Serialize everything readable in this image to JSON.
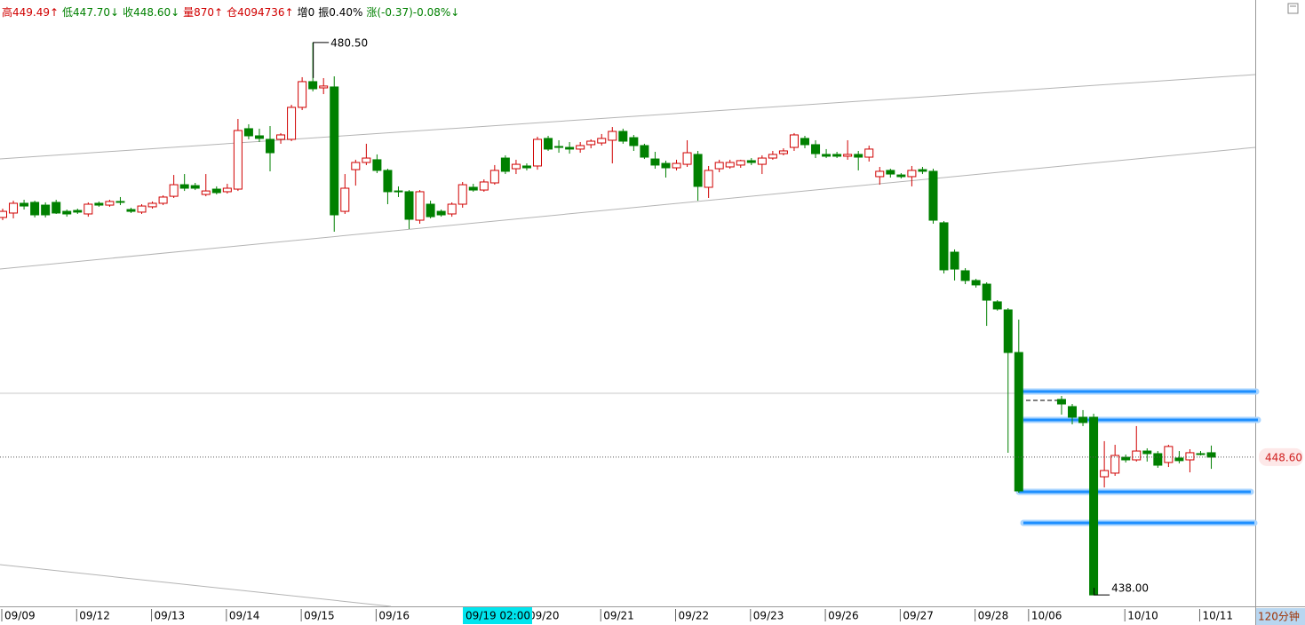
{
  "chart_data": {
    "type": "candlestick",
    "header_items": [
      {
        "text": "高449.49↑",
        "color": "#d00000"
      },
      {
        "text": "低447.70↓",
        "color": "#008000"
      },
      {
        "text": "收448.60↓",
        "color": "#008000"
      },
      {
        "text": "量870↑",
        "color": "#d00000"
      },
      {
        "text": "仓4094736↑",
        "color": "#d00000"
      },
      {
        "text": "增0",
        "color": "#000000"
      },
      {
        "text": "振0.40%",
        "color": "#000000"
      },
      {
        "text": "涨(-0.37)-0.08%↓",
        "color": "#008000"
      }
    ],
    "period_label": "120分钟",
    "cursor_label": "09/19 02:00",
    "up_color": "#d00000",
    "down_color": "#008000",
    "ylim": [
      437.12,
      483.77
    ],
    "categories": [
      "09/09",
      null,
      null,
      null,
      null,
      null,
      null,
      "09/12",
      null,
      null,
      null,
      null,
      null,
      null,
      "09/13",
      null,
      null,
      null,
      null,
      null,
      null,
      "09/14",
      null,
      null,
      null,
      null,
      null,
      null,
      "09/15",
      null,
      null,
      null,
      null,
      null,
      null,
      "09/16",
      null,
      null,
      null,
      null,
      null,
      null,
      null,
      null,
      null,
      null,
      null,
      null,
      null,
      "09/20",
      null,
      null,
      null,
      null,
      null,
      null,
      "09/21",
      null,
      null,
      null,
      null,
      null,
      null,
      "09/22",
      null,
      null,
      null,
      null,
      null,
      null,
      "09/23",
      null,
      null,
      null,
      null,
      null,
      null,
      "09/26",
      null,
      null,
      null,
      null,
      null,
      null,
      "09/27",
      null,
      null,
      null,
      null,
      null,
      null,
      "09/28",
      null,
      null,
      null,
      null,
      "10/06",
      null,
      null,
      null,
      null,
      null,
      null,
      null,
      null,
      "10/10",
      null,
      null,
      null,
      null,
      null,
      null,
      "10/11",
      null
    ],
    "open": [
      467.04,
      467.38,
      468.13,
      468.2,
      467.99,
      468.2,
      467.51,
      467.58,
      467.31,
      468.13,
      467.99,
      468.27,
      467.65,
      467.45,
      467.86,
      468.13,
      468.67,
      469.56,
      469.49,
      468.81,
      469.22,
      469.02,
      469.22,
      473.87,
      473.32,
      473.05,
      473.05,
      473.05,
      475.51,
      477.49,
      477.01,
      477.08,
      467.51,
      470.72,
      471.27,
      471.48,
      470.66,
      469.08,
      469.02,
      466.83,
      468.06,
      467.51,
      467.31,
      468.06,
      469.36,
      469.15,
      469.7,
      471.61,
      470.79,
      471.0,
      471.0,
      473.12,
      472.5,
      472.43,
      472.3,
      472.64,
      472.77,
      472.98,
      473.66,
      473.18,
      472.57,
      471.54,
      471.2,
      470.86,
      471.13,
      471.89,
      469.36,
      470.79,
      470.93,
      471.07,
      471.41,
      471.13,
      471.61,
      471.95,
      472.43,
      473.12,
      472.64,
      471.89,
      471.89,
      471.75,
      471.89,
      471.68,
      470.18,
      470.66,
      470.31,
      470.18,
      470.72,
      470.59,
      466.63,
      464.37,
      462.94,
      462.19,
      461.91,
      460.55,
      459.93,
      456.65,
      null,
      null,
      null,
      453.04,
      452.49,
      451.67,
      451.67,
      447.09,
      447.37,
      448.59,
      448.39,
      449.07,
      448.87,
      448.19,
      448.53,
      448.39,
      448.87,
      448.94
    ],
    "high": [
      467.72,
      468.33,
      468.4,
      468.33,
      468.2,
      468.4,
      467.65,
      467.72,
      468.2,
      468.27,
      468.4,
      468.61,
      467.79,
      468.06,
      468.27,
      468.74,
      470.31,
      470.38,
      469.7,
      470.38,
      469.43,
      469.63,
      474.62,
      474.21,
      473.87,
      474.07,
      473.53,
      475.71,
      477.83,
      480.5,
      477.76,
      477.9,
      470.38,
      471.48,
      472.71,
      471.89,
      470.79,
      469.43,
      469.15,
      469.15,
      468.33,
      467.65,
      468.2,
      469.77,
      469.63,
      469.97,
      471.07,
      471.82,
      471.48,
      471.2,
      473.25,
      473.32,
      472.98,
      472.84,
      472.84,
      473.05,
      473.46,
      474.0,
      473.87,
      473.39,
      472.71,
      472.09,
      471.41,
      471.48,
      472.98,
      472.16,
      471.0,
      471.48,
      471.48,
      471.48,
      471.61,
      471.82,
      472.16,
      472.36,
      473.53,
      473.32,
      472.98,
      472.3,
      472.09,
      472.98,
      472.16,
      472.57,
      470.93,
      470.79,
      470.45,
      471.0,
      470.93,
      470.79,
      466.76,
      464.58,
      463.14,
      462.32,
      462.05,
      460.68,
      460.07,
      459.18,
      null,
      null,
      null,
      453.31,
      452.69,
      452.22,
      451.94,
      449.83,
      449.55,
      448.8,
      450.99,
      449.28,
      449.07,
      449.55,
      449.07,
      449.21,
      449.07,
      449.49
    ],
    "low": [
      466.83,
      466.97,
      467.65,
      467.04,
      467.04,
      467.31,
      467.1,
      467.31,
      467.1,
      467.86,
      467.86,
      467.99,
      467.38,
      467.31,
      467.72,
      467.99,
      468.54,
      469.08,
      469.15,
      468.67,
      468.81,
      468.88,
      469.08,
      473.05,
      472.84,
      470.59,
      472.71,
      472.91,
      475.3,
      476.74,
      476.53,
      465.94,
      467.31,
      469.49,
      471.07,
      470.45,
      468.06,
      468.61,
      466.15,
      466.56,
      466.97,
      467.1,
      467.1,
      467.79,
      469.02,
      469.02,
      469.56,
      470.38,
      470.38,
      470.66,
      470.72,
      472.16,
      472.02,
      471.95,
      472.02,
      472.36,
      472.57,
      471.2,
      472.71,
      472.16,
      471.54,
      470.79,
      470.11,
      470.66,
      470.93,
      468.33,
      468.54,
      470.52,
      470.79,
      470.86,
      471.07,
      470.38,
      471.48,
      471.82,
      472.16,
      472.36,
      471.61,
      471.61,
      471.61,
      471.48,
      470.66,
      471.34,
      469.56,
      470.11,
      470.04,
      469.43,
      470.38,
      466.56,
      462.73,
      462.19,
      461.91,
      461.64,
      458.7,
      459.87,
      448.94,
      445.86,
      null,
      null,
      null,
      451.87,
      451.12,
      450.99,
      438.0,
      446.27,
      447.16,
      448.19,
      448.26,
      448.26,
      447.78,
      447.84,
      448.12,
      447.43,
      448.73,
      447.7
    ],
    "close": [
      467.51,
      468.13,
      467.92,
      467.24,
      467.24,
      467.38,
      467.31,
      467.45,
      468.06,
      467.99,
      468.27,
      468.2,
      467.51,
      467.92,
      468.13,
      468.61,
      469.56,
      469.29,
      469.29,
      469.08,
      468.95,
      469.29,
      473.73,
      473.32,
      473.12,
      472.02,
      473.39,
      475.51,
      477.49,
      476.94,
      477.15,
      467.24,
      469.29,
      471.27,
      471.61,
      470.66,
      469.02,
      469.02,
      466.9,
      469.02,
      467.1,
      467.24,
      468.06,
      469.56,
      469.15,
      469.77,
      470.66,
      470.59,
      471.13,
      470.86,
      473.05,
      472.3,
      472.43,
      472.3,
      472.57,
      472.91,
      473.12,
      473.66,
      472.91,
      472.57,
      471.68,
      471.07,
      470.86,
      471.2,
      472.02,
      469.43,
      470.66,
      471.27,
      471.27,
      471.41,
      471.27,
      471.61,
      471.89,
      472.16,
      473.39,
      472.64,
      471.95,
      471.75,
      471.75,
      471.89,
      471.68,
      472.3,
      470.59,
      470.38,
      470.18,
      470.66,
      470.59,
      466.83,
      463.01,
      463.07,
      462.19,
      461.85,
      460.68,
      460.0,
      456.65,
      446.0,
      null,
      null,
      null,
      452.69,
      451.67,
      451.26,
      438.0,
      447.57,
      448.73,
      448.39,
      449.07,
      448.87,
      447.98,
      449.42,
      448.33,
      448.94,
      448.8,
      448.6
    ],
    "annotations": [
      {
        "value": 480.5,
        "label": "480.50"
      },
      {
        "value": 438,
        "label": "438.00"
      }
    ],
    "last_price": {
      "value": 448.6,
      "label": "448.60"
    }
  }
}
